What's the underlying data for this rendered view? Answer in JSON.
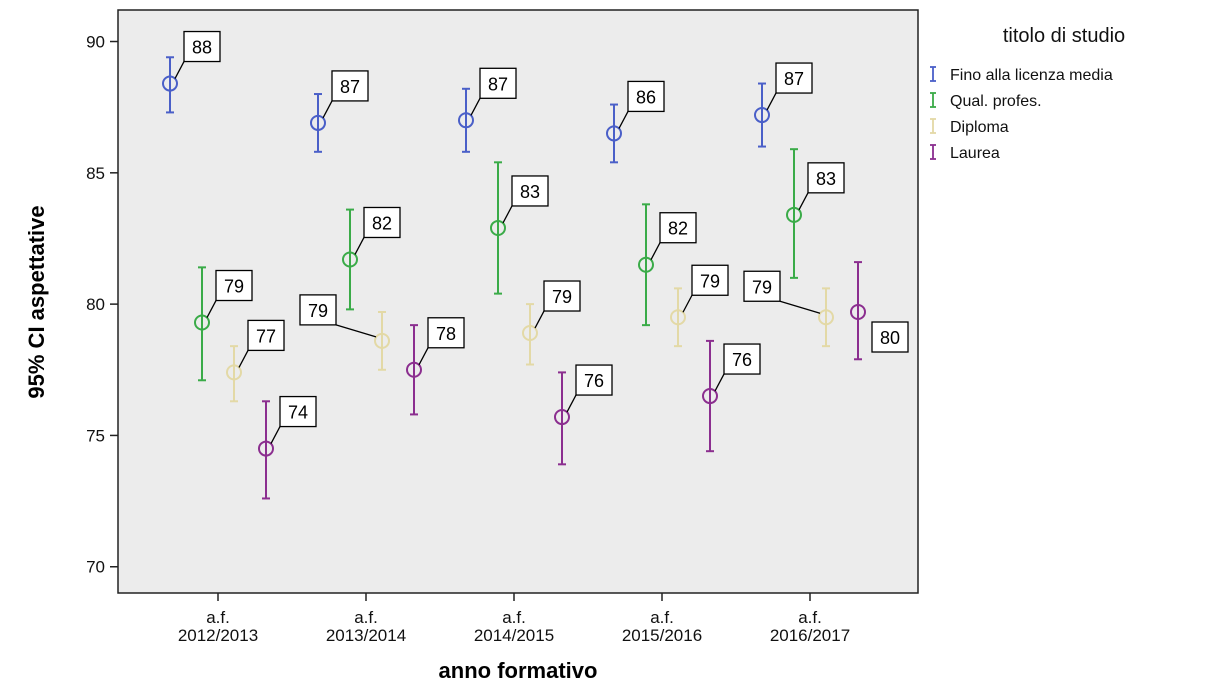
{
  "chart_data": {
    "type": "errorbar",
    "xlabel": "anno formativo",
    "ylabel": "95% CI aspettative",
    "categories": [
      [
        "a.f.",
        "2012/2013"
      ],
      [
        "a.f.",
        "2013/2014"
      ],
      [
        "a.f.",
        "2014/2015"
      ],
      [
        "a.f.",
        "2015/2016"
      ],
      [
        "a.f.",
        "2016/2017"
      ]
    ],
    "ylim": [
      69,
      91.2
    ],
    "yticks": [
      70,
      75,
      80,
      85,
      90
    ],
    "legend": {
      "title": "titolo di studio",
      "position": "right-top"
    },
    "series": [
      {
        "name": "Fino alla licenza media",
        "color": "#4a5fc8",
        "mean": [
          88.4,
          86.9,
          87.0,
          86.5,
          87.2
        ],
        "lower": [
          87.3,
          85.8,
          85.8,
          85.4,
          86.0
        ],
        "upper": [
          89.4,
          88.0,
          88.2,
          87.6,
          88.4
        ],
        "labels": [
          "88",
          "87",
          "87",
          "86",
          "87"
        ],
        "label_side": [
          "right",
          "right",
          "right",
          "right",
          "right"
        ]
      },
      {
        "name": "Qual. profes.",
        "color": "#3aab48",
        "mean": [
          79.3,
          81.7,
          82.9,
          81.5,
          83.4
        ],
        "lower": [
          77.1,
          79.8,
          80.4,
          79.2,
          81.0
        ],
        "upper": [
          81.4,
          83.6,
          85.4,
          83.8,
          85.9
        ],
        "labels": [
          "79",
          "82",
          "83",
          "82",
          "83"
        ],
        "label_side": [
          "right",
          "right",
          "right",
          "right",
          "right"
        ]
      },
      {
        "name": "Diploma",
        "color": "#e3d9a6",
        "mean": [
          77.4,
          78.6,
          78.9,
          79.5,
          79.5
        ],
        "lower": [
          76.3,
          77.5,
          77.7,
          78.4,
          78.4
        ],
        "upper": [
          78.4,
          79.7,
          80.0,
          80.6,
          80.6
        ],
        "labels": [
          "77",
          "79",
          "79",
          "79",
          "79"
        ],
        "label_side": [
          "right",
          "left",
          "right",
          "right",
          "left"
        ]
      },
      {
        "name": "Laurea",
        "color": "#8b2e8f",
        "mean": [
          74.5,
          77.5,
          75.7,
          76.5,
          79.7
        ],
        "lower": [
          72.6,
          75.8,
          73.9,
          74.4,
          77.9
        ],
        "upper": [
          76.3,
          79.2,
          77.4,
          78.6,
          81.6
        ],
        "labels": [
          "74",
          "78",
          "76",
          "76",
          "80"
        ],
        "label_side": [
          "right",
          "right",
          "right",
          "right",
          "right-low"
        ]
      }
    ]
  }
}
